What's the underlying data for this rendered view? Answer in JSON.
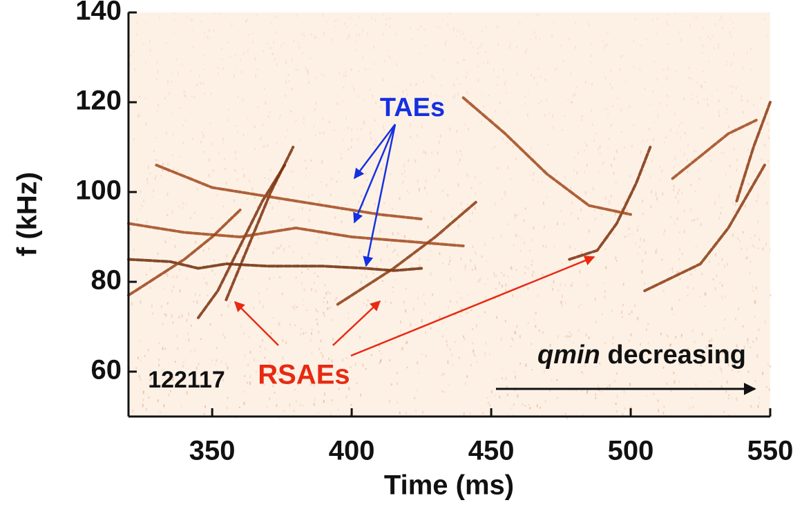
{
  "chart_data": {
    "type": "spectrogram",
    "x_label": "Time (ms)",
    "y_label": "f (kHz)",
    "xlim": [
      320,
      550
    ],
    "ylim": [
      50,
      140
    ],
    "xticks": [
      350,
      400,
      450,
      500,
      550
    ],
    "yticks": [
      60,
      80,
      100,
      120,
      140
    ],
    "shot_label": "122117",
    "annotations": {
      "taes": {
        "text": "TAEs",
        "color": "#1530e0"
      },
      "rsaes": {
        "text": "RSAEs",
        "color": "#e82a12"
      },
      "qmin": {
        "text": "qmin",
        "rest": " decreasing",
        "color": "#111111"
      }
    },
    "series": [
      {
        "color": "#6e2a06",
        "x": [
          320,
          335,
          345,
          355,
          370,
          390,
          405,
          415,
          425
        ],
        "values": [
          85,
          84.5,
          83,
          84,
          83.5,
          83.5,
          83,
          82.5,
          83
        ]
      },
      {
        "color": "#7a300a",
        "x": [
          345,
          352,
          360,
          368,
          376
        ],
        "values": [
          72,
          78,
          88,
          98,
          106
        ]
      },
      {
        "color": "#7a300a",
        "x": [
          355,
          363,
          371,
          379
        ],
        "values": [
          76,
          88,
          100,
          110
        ]
      },
      {
        "color": "#8a3a0e",
        "x": [
          395,
          405,
          415,
          430,
          445
        ],
        "values": [
          75,
          79,
          83,
          90,
          98
        ]
      },
      {
        "color": "#7a300a",
        "x": [
          478,
          488,
          495,
          502,
          507
        ],
        "values": [
          85,
          87,
          93,
          102,
          110
        ]
      },
      {
        "color": "#8a3a0e",
        "x": [
          505,
          515,
          525,
          535,
          548
        ],
        "values": [
          78,
          81,
          84,
          92,
          106
        ]
      },
      {
        "color": "#8a3a0e",
        "x": [
          538,
          544,
          550
        ],
        "values": [
          98,
          110,
          120
        ]
      },
      {
        "color": "#a0481a",
        "x": [
          320,
          340,
          360,
          380,
          400,
          420,
          440
        ],
        "values": [
          93,
          91,
          90,
          92,
          90,
          89,
          88
        ]
      },
      {
        "color": "#a0481a",
        "x": [
          330,
          350,
          370,
          390,
          410,
          425
        ],
        "values": [
          106,
          101,
          99,
          97,
          95,
          94
        ]
      },
      {
        "color": "#a0481a",
        "x": [
          440,
          455,
          470,
          485,
          500
        ],
        "values": [
          121,
          113,
          104,
          97,
          95
        ]
      },
      {
        "color": "#9a4416",
        "x": [
          320,
          330,
          340,
          350,
          360
        ],
        "values": [
          77,
          81,
          85,
          90,
          96
        ]
      },
      {
        "color": "#a0481a",
        "x": [
          515,
          525,
          535,
          545
        ],
        "values": [
          103,
          108,
          113,
          116
        ]
      }
    ]
  }
}
